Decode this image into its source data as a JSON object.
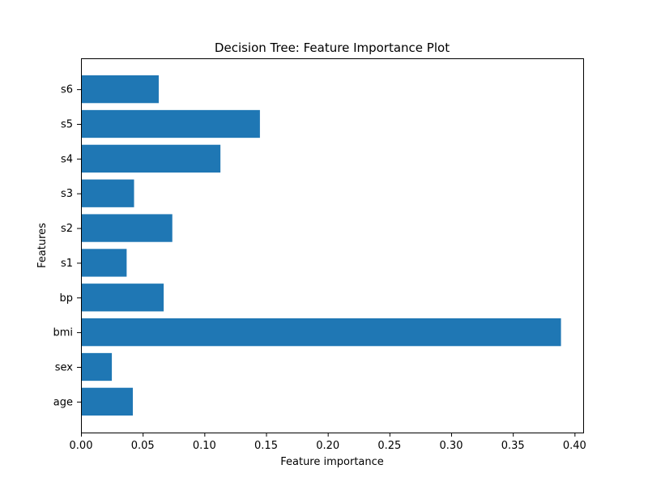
{
  "chart_data": {
    "type": "bar",
    "orientation": "horizontal",
    "title": "Decision Tree: Feature Importance Plot",
    "xlabel": "Feature importance",
    "ylabel": "Features",
    "categories": [
      "age",
      "sex",
      "bmi",
      "bp",
      "s1",
      "s2",
      "s3",
      "s4",
      "s5",
      "s6"
    ],
    "values": [
      0.042,
      0.025,
      0.389,
      0.067,
      0.037,
      0.074,
      0.043,
      0.113,
      0.145,
      0.063
    ],
    "xlim": [
      0.0,
      0.407
    ],
    "xticks": [
      0.0,
      0.05,
      0.1,
      0.15,
      0.2,
      0.25,
      0.3,
      0.35,
      0.4
    ],
    "xtick_labels": [
      "0.00",
      "0.05",
      "0.10",
      "0.15",
      "0.20",
      "0.25",
      "0.30",
      "0.35",
      "0.40"
    ],
    "grid": false,
    "bar_color": "#1f77b4"
  }
}
